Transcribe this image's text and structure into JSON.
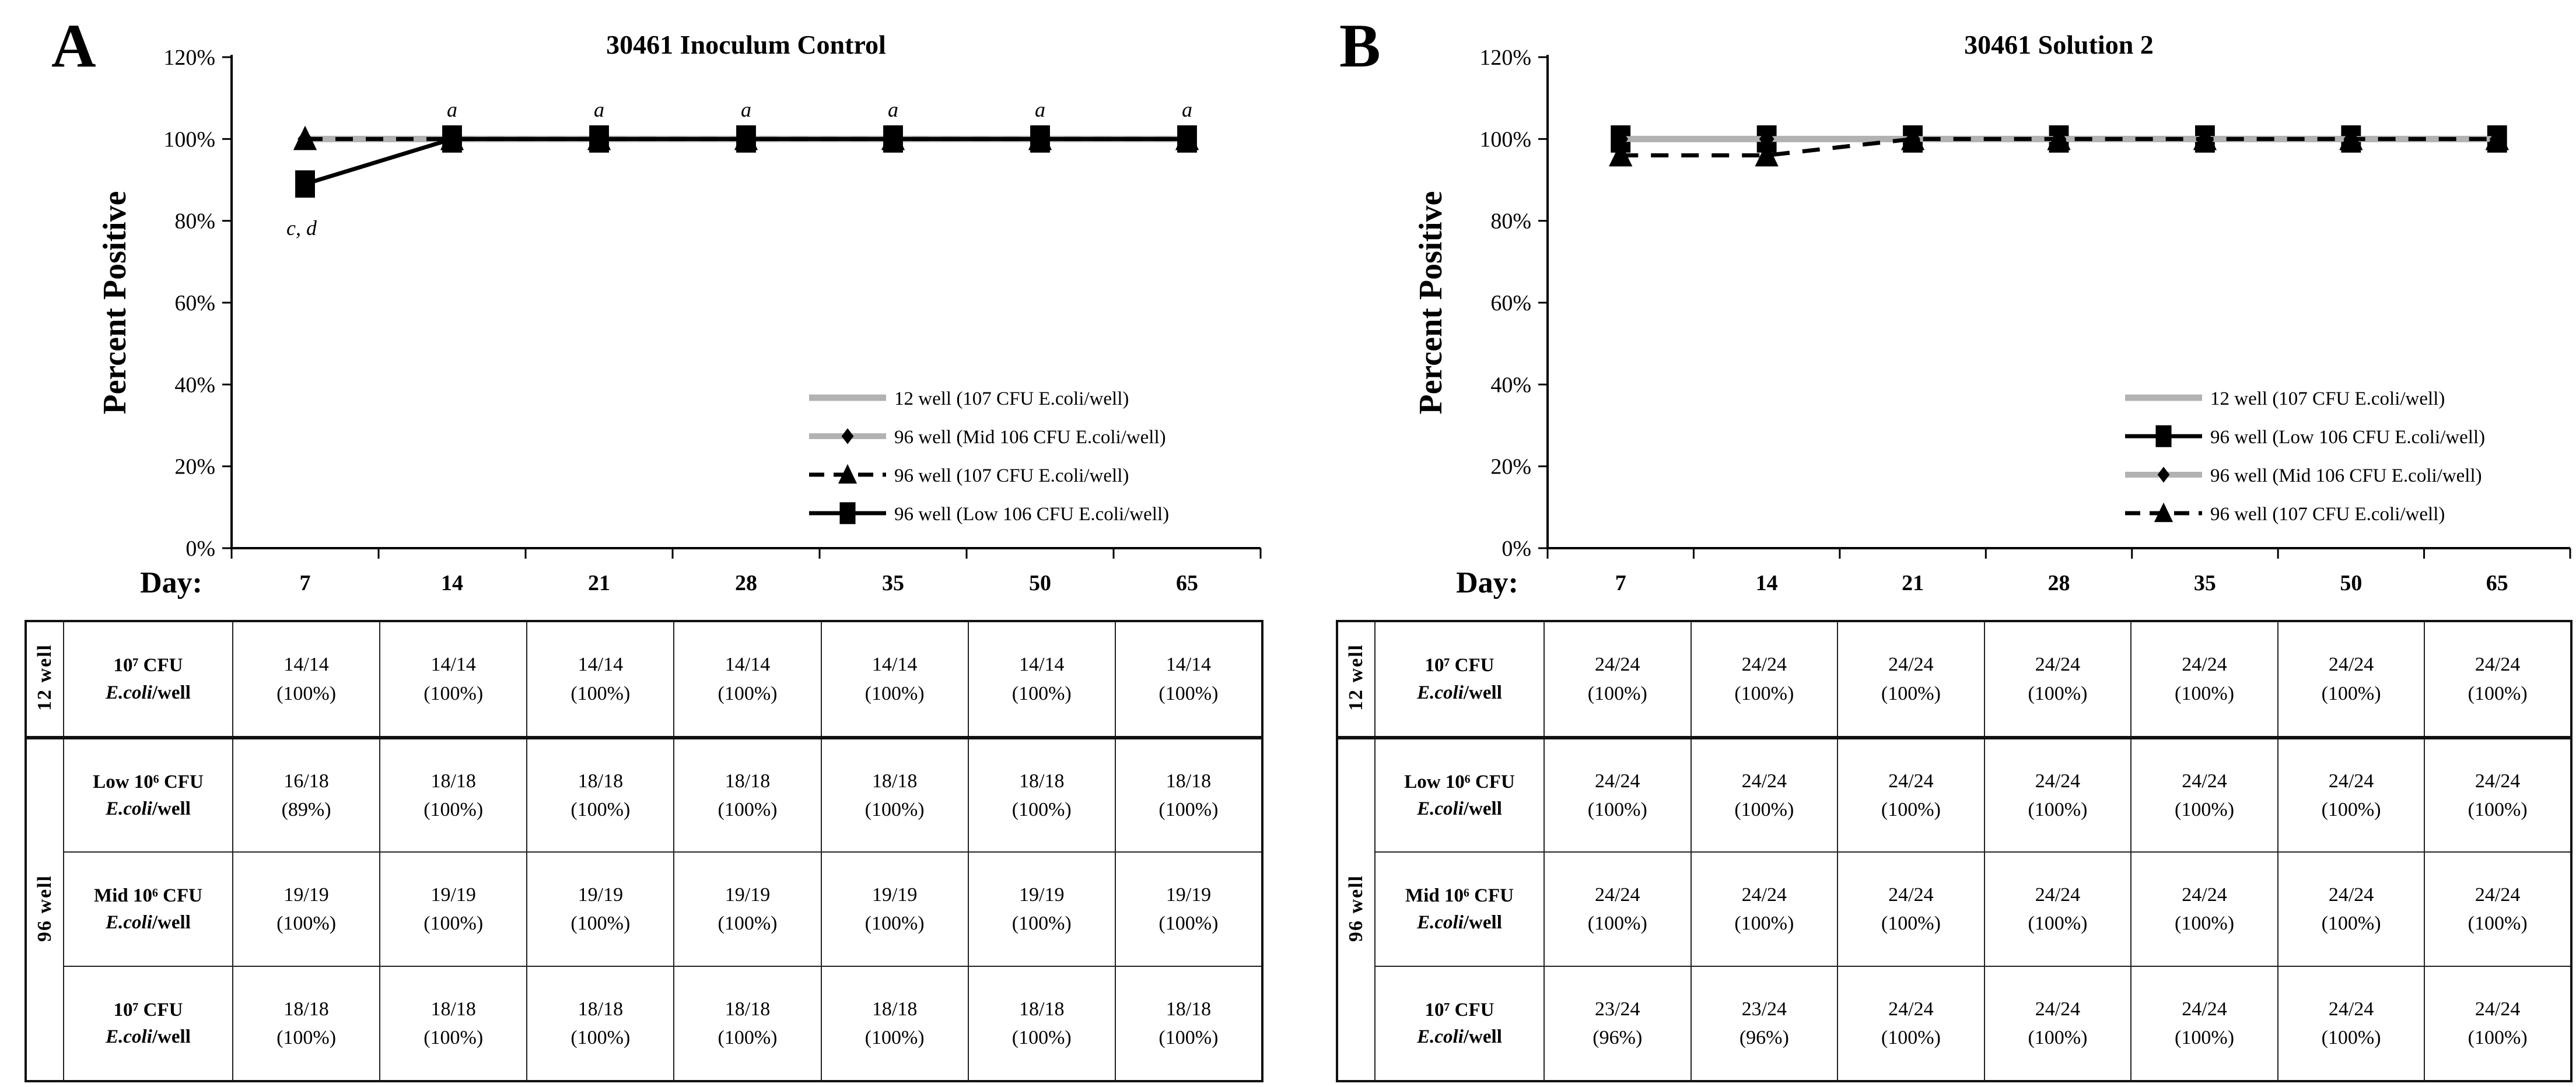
{
  "colors": {
    "gray_line": "#b2b2b2",
    "black": "#000000"
  },
  "chart_data": [
    {
      "type": "line",
      "panel": "A",
      "title": "30461 Inoculum Control",
      "xlabel": "Day:",
      "ylabel": "Percent Positive",
      "x_labels": [
        "7",
        "14",
        "21",
        "28",
        "35",
        "50",
        "65"
      ],
      "yticks": [
        0,
        20,
        40,
        60,
        80,
        100,
        120
      ],
      "ytick_labels": [
        "0%",
        "20%",
        "40%",
        "60%",
        "80%",
        "100%",
        "120%"
      ],
      "ylim": [
        0,
        120
      ],
      "grid": false,
      "legend_position": "lower right",
      "series": [
        {
          "name": "12 well (107 CFU E.coli/well)",
          "values": [
            100,
            100,
            100,
            100,
            100,
            100,
            100
          ],
          "color": "#b2b2b2",
          "line_style": "solid",
          "line_width": 11,
          "marker": "none",
          "marker_size": 0
        },
        {
          "name": "96 well (Mid 106 CFU E.coli/well)",
          "values": [
            100,
            100,
            100,
            100,
            100,
            100,
            100
          ],
          "color": "#b2b2b2",
          "line_style": "solid",
          "line_width": 10,
          "marker": "diamond",
          "marker_size": 34
        },
        {
          "name": "96 well (107 CFU E.coli/well)",
          "values": [
            100,
            100,
            100,
            100,
            100,
            100,
            100
          ],
          "color": "#000000",
          "line_style": "dashed",
          "line_width": 7,
          "marker": "triangle",
          "marker_size": 38
        },
        {
          "name": "96 well (Low 106 CFU E.coli/well)",
          "values": [
            89,
            100,
            100,
            100,
            100,
            100,
            100
          ],
          "color": "#000000",
          "line_style": "solid",
          "line_width": 7,
          "marker": "square",
          "marker_size": 36
        }
      ],
      "annotations": [
        {
          "x_index": 0,
          "y": 89,
          "text": "c, d",
          "position": "below"
        },
        {
          "x_index": 1,
          "y": 100,
          "text": "a",
          "position": "above"
        },
        {
          "x_index": 2,
          "y": 100,
          "text": "a",
          "position": "above"
        },
        {
          "x_index": 3,
          "y": 100,
          "text": "a",
          "position": "above"
        },
        {
          "x_index": 4,
          "y": 100,
          "text": "a",
          "position": "above"
        },
        {
          "x_index": 5,
          "y": 100,
          "text": "a",
          "position": "above"
        },
        {
          "x_index": 6,
          "y": 100,
          "text": "a",
          "position": "above"
        }
      ]
    },
    {
      "type": "line",
      "panel": "B",
      "title": "30461 Solution 2",
      "xlabel": "Day:",
      "ylabel": "Percent Positive",
      "x_labels": [
        "7",
        "14",
        "21",
        "28",
        "35",
        "50",
        "65"
      ],
      "yticks": [
        0,
        20,
        40,
        60,
        80,
        100,
        120
      ],
      "ytick_labels": [
        "0%",
        "20%",
        "40%",
        "60%",
        "80%",
        "100%",
        "120%"
      ],
      "ylim": [
        0,
        120
      ],
      "grid": false,
      "legend_position": "lower right",
      "series": [
        {
          "name": "12 well (107 CFU E.coli/well)",
          "values": [
            100,
            100,
            100,
            100,
            100,
            100,
            100
          ],
          "color": "#b2b2b2",
          "line_style": "solid",
          "line_width": 11,
          "marker": "none",
          "marker_size": 0
        },
        {
          "name": "96 well (Low 106 CFU E.coli/well)",
          "values": [
            100,
            100,
            100,
            100,
            100,
            100,
            100
          ],
          "color": "#000000",
          "line_style": "solid",
          "line_width": 7,
          "marker": "square",
          "marker_size": 36
        },
        {
          "name": "96 well (Mid 106 CFU E.coli/well)",
          "values": [
            100,
            100,
            100,
            100,
            100,
            100,
            100
          ],
          "color": "#b2b2b2",
          "line_style": "solid",
          "line_width": 10,
          "marker": "diamond",
          "marker_size": 34
        },
        {
          "name": "96 well (107 CFU E.coli/well)",
          "values": [
            96,
            96,
            100,
            100,
            100,
            100,
            100
          ],
          "color": "#000000",
          "line_style": "dashed",
          "line_width": 7,
          "marker": "triangle",
          "marker_size": 38
        }
      ],
      "annotations": []
    }
  ],
  "tables": [
    {
      "panel": "A",
      "groups": [
        {
          "label": "12 well"
        },
        {
          "label": "96 well"
        }
      ],
      "rows": [
        {
          "dose": "10⁷ CFU",
          "organism": "E.coli",
          "suffix": "/well",
          "cells": [
            "14/14\n(100%)",
            "14/14\n(100%)",
            "14/14\n(100%)",
            "14/14\n(100%)",
            "14/14\n(100%)",
            "14/14\n(100%)",
            "14/14\n(100%)"
          ]
        },
        {
          "dose": "Low 10⁶ CFU",
          "organism": "E.coli",
          "suffix": "/well",
          "cells": [
            "16/18\n(89%)",
            "18/18\n(100%)",
            "18/18\n(100%)",
            "18/18\n(100%)",
            "18/18\n(100%)",
            "18/18\n(100%)",
            "18/18\n(100%)"
          ]
        },
        {
          "dose": "Mid 10⁶ CFU",
          "organism": "E.coli",
          "suffix": "/well",
          "cells": [
            "19/19\n(100%)",
            "19/19\n(100%)",
            "19/19\n(100%)",
            "19/19\n(100%)",
            "19/19\n(100%)",
            "19/19\n(100%)",
            "19/19\n(100%)"
          ]
        },
        {
          "dose": "10⁷ CFU",
          "organism": "E.coli",
          "suffix": "/well",
          "cells": [
            "18/18\n(100%)",
            "18/18\n(100%)",
            "18/18\n(100%)",
            "18/18\n(100%)",
            "18/18\n(100%)",
            "18/18\n(100%)",
            "18/18\n(100%)"
          ]
        }
      ]
    },
    {
      "panel": "B",
      "groups": [
        {
          "label": "12 well"
        },
        {
          "label": "96 well"
        }
      ],
      "rows": [
        {
          "dose": "10⁷ CFU",
          "organism": "E.coli",
          "suffix": "/well",
          "cells": [
            "24/24\n(100%)",
            "24/24\n(100%)",
            "24/24\n(100%)",
            "24/24\n(100%)",
            "24/24\n(100%)",
            "24/24\n(100%)",
            "24/24\n(100%)"
          ]
        },
        {
          "dose": "Low 10⁶ CFU",
          "organism": "E.coli",
          "suffix": "/well",
          "cells": [
            "24/24\n(100%)",
            "24/24\n(100%)",
            "24/24\n(100%)",
            "24/24\n(100%)",
            "24/24\n(100%)",
            "24/24\n(100%)",
            "24/24\n(100%)"
          ]
        },
        {
          "dose": "Mid 10⁶ CFU",
          "organism": "E.coli",
          "suffix": "/well",
          "cells": [
            "24/24\n(100%)",
            "24/24\n(100%)",
            "24/24\n(100%)",
            "24/24\n(100%)",
            "24/24\n(100%)",
            "24/24\n(100%)",
            "24/24\n(100%)"
          ]
        },
        {
          "dose": "10⁷ CFU",
          "organism": "E.coli",
          "suffix": "/well",
          "cells": [
            "23/24\n(96%)",
            "23/24\n(96%)",
            "24/24\n(100%)",
            "24/24\n(100%)",
            "24/24\n(100%)",
            "24/24\n(100%)",
            "24/24\n(100%)"
          ]
        }
      ]
    }
  ]
}
